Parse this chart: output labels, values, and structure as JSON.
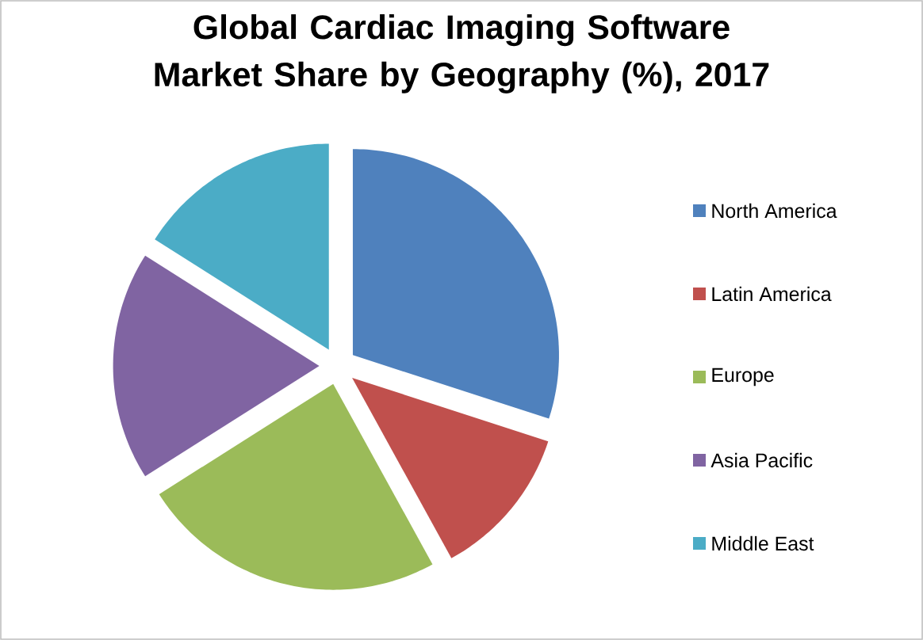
{
  "chart_data": {
    "type": "pie",
    "title": "Global Cardiac Imaging Software Market Share by Geography (%), 2017",
    "categories": [
      "North America",
      "Latin America",
      "Europe",
      "Asia Pacific",
      "Middle East"
    ],
    "values": [
      30,
      12,
      24,
      18,
      16
    ],
    "colors": [
      "#4f81bd",
      "#c0504d",
      "#9bbb59",
      "#8064a2",
      "#4bacc6"
    ],
    "legend": "right"
  }
}
